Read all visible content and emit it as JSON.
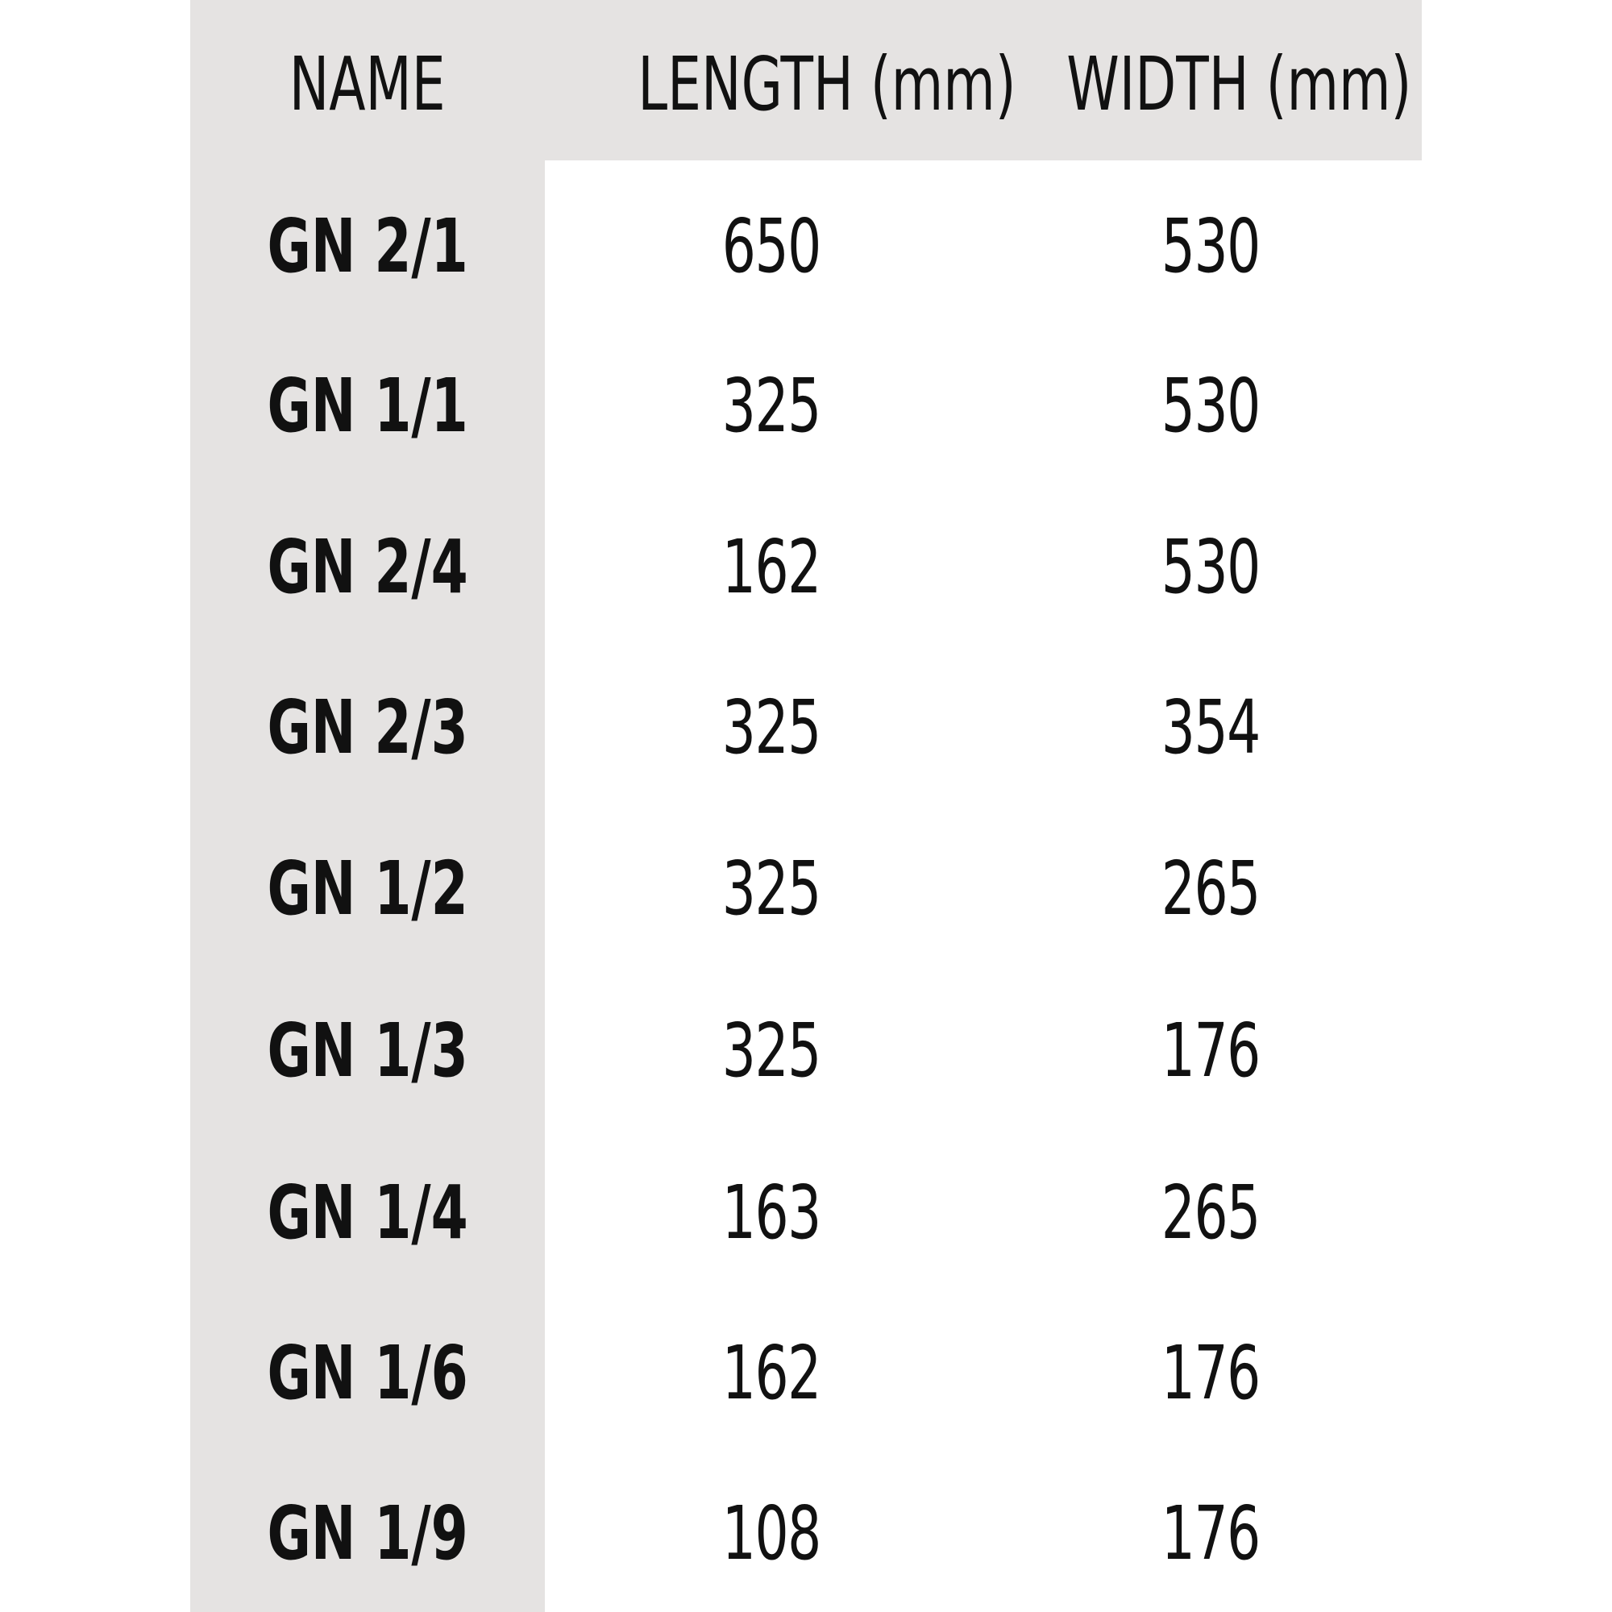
{
  "table": {
    "headers": [
      "NAME",
      "LENGTH (mm)",
      "WIDTH (mm)"
    ],
    "rows": [
      {
        "name": "GN 2/1",
        "length": "650",
        "width": "530"
      },
      {
        "name": "GN 1/1",
        "length": "325",
        "width": "530"
      },
      {
        "name": "GN 2/4",
        "length": "162",
        "width": "530"
      },
      {
        "name": "GN 2/3",
        "length": "325",
        "width": "354"
      },
      {
        "name": "GN 1/2",
        "length": "325",
        "width": "265"
      },
      {
        "name": "GN 1/3",
        "length": "325",
        "width": "176"
      },
      {
        "name": "GN 1/4",
        "length": "163",
        "width": "265"
      },
      {
        "name": "GN 1/6",
        "length": "162",
        "width": "176"
      },
      {
        "name": "GN 1/9",
        "length": "108",
        "width": "176"
      }
    ]
  },
  "colors": {
    "panel": "#e5e3e2",
    "text": "#111111",
    "background": "#ffffff"
  }
}
